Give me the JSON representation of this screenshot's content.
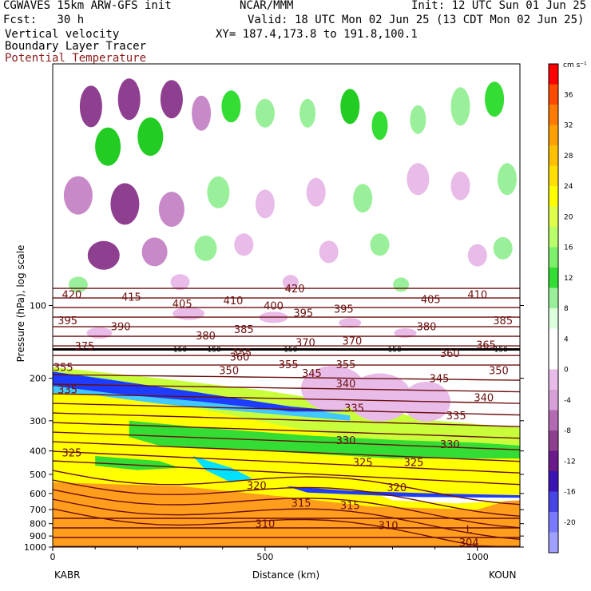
{
  "header": {
    "model": "CGWAVES 15km ARW-GFS init",
    "org": "NCAR/MMM",
    "init": "Init: 12 UTC Sun 01 Jun 25",
    "fcst": "Fcst:   30 h",
    "valid": "Valid: 18 UTC Mon 02 Jun 25 (13 CDT Mon 02 Jun 25)",
    "field1": "Vertical velocity",
    "xy": "XY= 187.4,173.8 to 191.8,100.1",
    "field2": "Boundary Layer Tracer",
    "field3": "Potential Temperature"
  },
  "colors": {
    "theta_contour": "#6b0f0f",
    "tropopause_line": "#000000"
  },
  "chart_data": {
    "type": "heatmap",
    "title": "Vertical velocity",
    "xlabel": "Distance (km)",
    "ylabel": "Pressure (hPa), log scale",
    "xlim": [
      0,
      1100
    ],
    "x_ticks": [
      0,
      500,
      1000
    ],
    "y_scale": "log",
    "ylim": [
      1000,
      10
    ],
    "y_ticks": [
      100,
      200,
      300,
      400,
      500,
      600,
      700,
      800,
      900,
      1000
    ],
    "endpoints": {
      "left": "KABR",
      "right": "KOUN"
    },
    "colorbar": {
      "units": "cm s⁻¹",
      "tick_labels": [
        36,
        32,
        28,
        24,
        20,
        16,
        12,
        8,
        4,
        0,
        -4,
        -8,
        -12,
        -16,
        -20
      ],
      "colors": [
        "#ff0000",
        "#ff4a00",
        "#ff7a00",
        "#ffa000",
        "#ffc000",
        "#ffe000",
        "#ffff00",
        "#dfff4a",
        "#b8ff6a",
        "#7cf06a",
        "#33dd33",
        "#9af09a",
        "#dcffdc",
        "#ffffff",
        "#ffffff",
        "#e8bbe8",
        "#d7a0d7",
        "#b26bb2",
        "#8f3f8f",
        "#6a1a8a",
        "#3a14b4",
        "#4646e6",
        "#7a7aff",
        "#a0a0ff"
      ]
    },
    "series": [
      {
        "name": "Potential Temperature",
        "contour_labels": [
          420,
          415,
          410,
          405,
          400,
          395,
          390,
          385,
          380,
          375,
          370,
          365,
          360,
          355,
          350,
          345,
          340,
          335,
          330,
          325,
          320,
          315,
          310,
          304
        ],
        "labeled_points": [
          {
            "x": 45,
            "p": 90,
            "value": 420
          },
          {
            "x": 185,
            "p": 92,
            "value": 415
          },
          {
            "x": 305,
            "p": 98,
            "value": 405
          },
          {
            "x": 425,
            "p": 95,
            "value": 410
          },
          {
            "x": 520,
            "p": 100,
            "value": 400
          },
          {
            "x": 570,
            "p": 85,
            "value": 420
          },
          {
            "x": 590,
            "p": 107,
            "value": 395
          },
          {
            "x": 685,
            "p": 103,
            "value": 395
          },
          {
            "x": 890,
            "p": 94,
            "value": 405
          },
          {
            "x": 1000,
            "p": 90,
            "value": 410
          },
          {
            "x": 35,
            "p": 115,
            "value": 395
          },
          {
            "x": 160,
            "p": 122,
            "value": 390
          },
          {
            "x": 360,
            "p": 133,
            "value": 380
          },
          {
            "x": 450,
            "p": 125,
            "value": 385
          },
          {
            "x": 880,
            "p": 122,
            "value": 380
          },
          {
            "x": 1060,
            "p": 115,
            "value": 385
          },
          {
            "x": 75,
            "p": 147,
            "value": 375
          },
          {
            "x": 595,
            "p": 142,
            "value": 370
          },
          {
            "x": 705,
            "p": 140,
            "value": 370
          },
          {
            "x": 1020,
            "p": 145,
            "value": 365
          },
          {
            "x": 445,
            "p": 156,
            "value": 355
          },
          {
            "x": 935,
            "p": 157,
            "value": 360
          },
          {
            "x": 440,
            "p": 163,
            "value": 360
          },
          {
            "x": 25,
            "p": 180,
            "value": 355
          },
          {
            "x": 555,
            "p": 175,
            "value": 355
          },
          {
            "x": 415,
            "p": 185,
            "value": 350
          },
          {
            "x": 690,
            "p": 175,
            "value": 355
          },
          {
            "x": 1050,
            "p": 185,
            "value": 350
          },
          {
            "x": 610,
            "p": 190,
            "value": 345
          },
          {
            "x": 910,
            "p": 200,
            "value": 345
          },
          {
            "x": 690,
            "p": 210,
            "value": 340
          },
          {
            "x": 1015,
            "p": 240,
            "value": 340
          },
          {
            "x": 35,
            "p": 222,
            "value": 335
          },
          {
            "x": 710,
            "p": 265,
            "value": 335
          },
          {
            "x": 950,
            "p": 285,
            "value": 335
          },
          {
            "x": 690,
            "p": 360,
            "value": 330
          },
          {
            "x": 935,
            "p": 375,
            "value": 330
          },
          {
            "x": 45,
            "p": 405,
            "value": 325
          },
          {
            "x": 730,
            "p": 445,
            "value": 325
          },
          {
            "x": 850,
            "p": 445,
            "value": 325
          },
          {
            "x": 480,
            "p": 555,
            "value": 320
          },
          {
            "x": 810,
            "p": 565,
            "value": 320
          },
          {
            "x": 585,
            "p": 655,
            "value": 315
          },
          {
            "x": 700,
            "p": 670,
            "value": 315
          },
          {
            "x": 500,
            "p": 800,
            "value": 310
          },
          {
            "x": 790,
            "p": 810,
            "value": 310
          },
          {
            "x": 980,
            "p": 955,
            "value": 304
          }
        ]
      },
      {
        "name": "Boundary Layer Tracer",
        "contour_labels": [
          150,
          150,
          150,
          150,
          150
        ],
        "labeled_points": [
          {
            "x": 300,
            "p": 152,
            "value": 150
          },
          {
            "x": 380,
            "p": 152,
            "value": 150
          },
          {
            "x": 560,
            "p": 152,
            "value": 150
          },
          {
            "x": 805,
            "p": 152,
            "value": 150
          },
          {
            "x": 1055,
            "p": 152,
            "value": 150
          }
        ]
      }
    ],
    "low_marker": {
      "label": "L",
      "x": 980,
      "p": 875
    },
    "grid": false
  }
}
